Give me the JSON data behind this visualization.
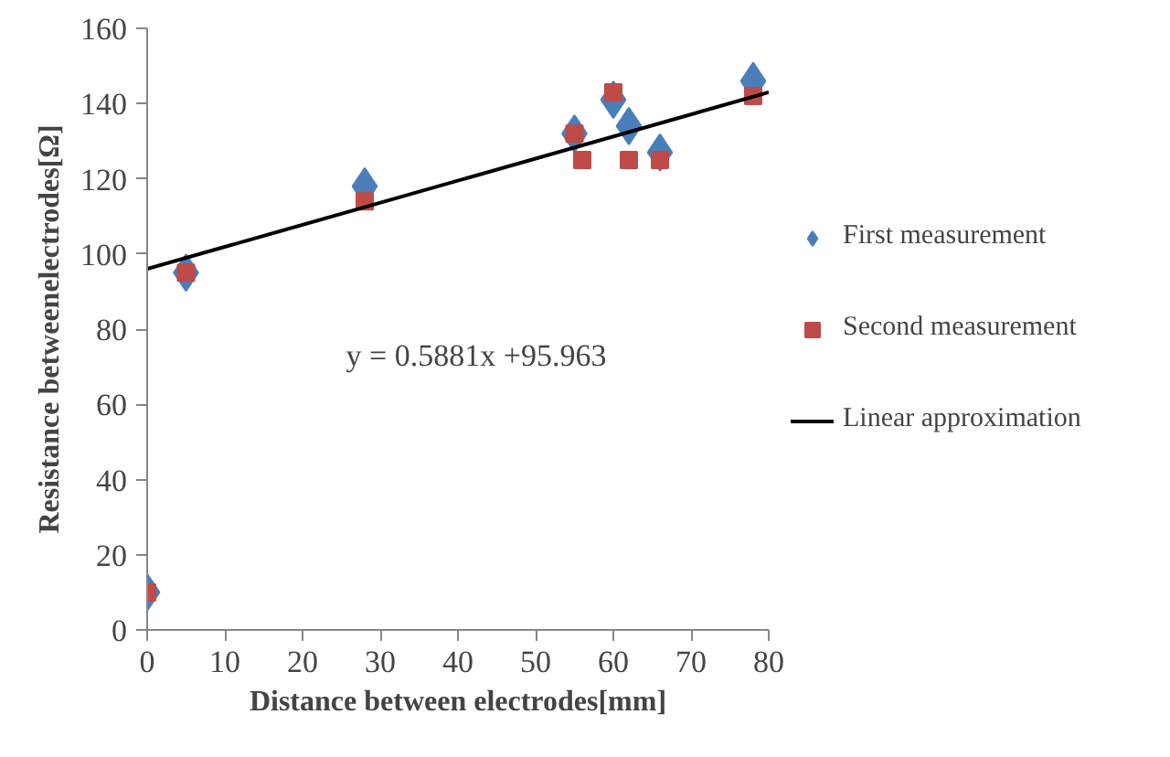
{
  "chart_data": {
    "type": "scatter",
    "xlabel": "Distance between electrodes[mm]",
    "ylabel": "Resistance betweenelectrodes[Ω]",
    "xlim": [
      0,
      80
    ],
    "ylim": [
      0,
      160
    ],
    "xticks": [
      0,
      10,
      20,
      30,
      40,
      50,
      60,
      70,
      80
    ],
    "yticks": [
      0,
      20,
      40,
      60,
      80,
      100,
      120,
      140,
      160
    ],
    "grid": false,
    "legend": "right",
    "series": [
      {
        "name": "First measurement",
        "color": "#4a7ebb",
        "marker": "diamond",
        "x": [
          0,
          5,
          28,
          55,
          60,
          62,
          66,
          78
        ],
        "values": [
          10,
          95,
          118,
          132,
          141,
          134,
          127,
          146
        ]
      },
      {
        "name": "Second measurement",
        "color": "#be4b48",
        "marker": "square",
        "x": [
          0,
          5,
          28,
          55,
          56,
          60,
          62,
          66,
          78
        ],
        "values": [
          10,
          95,
          114,
          132,
          125,
          143,
          125,
          125,
          142
        ]
      },
      {
        "name": "Linear approximation",
        "type": "line",
        "color": "#000000",
        "marker": "none",
        "line_style": "solid",
        "x": [
          0,
          80
        ],
        "values": [
          96,
          143
        ]
      }
    ],
    "annotations": [
      "y = 0.5881x +95.963"
    ]
  }
}
